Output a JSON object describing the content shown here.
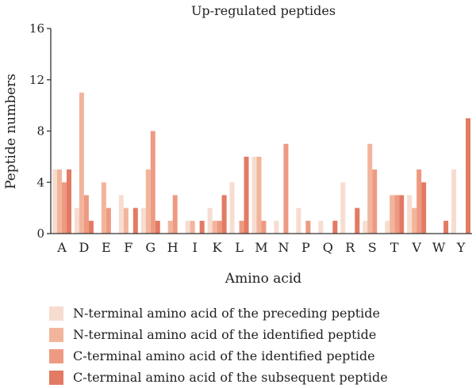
{
  "chart_data": {
    "type": "bar",
    "title": "Up-regulated peptides",
    "xlabel": "Amino acid",
    "ylabel": "Peptide numbers",
    "ylim": [
      0,
      16
    ],
    "yticks": [
      0,
      4,
      8,
      12,
      16
    ],
    "categories": [
      "A",
      "D",
      "E",
      "F",
      "G",
      "H",
      "I",
      "K",
      "L",
      "M",
      "N",
      "P",
      "Q",
      "R",
      "S",
      "T",
      "V",
      "W",
      "Y"
    ],
    "legend_position": "bottom",
    "series": [
      {
        "name": "N-terminal amino acid of the preceding peptide",
        "color": "#f6ddd0",
        "values": [
          5,
          2,
          0,
          3,
          2,
          0,
          1,
          2,
          4,
          6,
          1,
          2,
          1,
          4,
          1,
          1,
          3,
          0,
          5
        ]
      },
      {
        "name": "N-terminal amino acid of the identified peptide",
        "color": "#f2b59c",
        "values": [
          5,
          11,
          4,
          2,
          5,
          1,
          1,
          1,
          0,
          6,
          0,
          0,
          0,
          0,
          7,
          3,
          2,
          0,
          0
        ]
      },
      {
        "name": "C-terminal amino acid of the identified peptide",
        "color": "#ee9a82",
        "values": [
          4,
          3,
          2,
          0,
          8,
          3,
          0,
          1,
          1,
          1,
          7,
          1,
          0,
          0,
          5,
          3,
          5,
          0,
          0
        ]
      },
      {
        "name": "C-terminal amino acid of the subsequent peptide",
        "color": "#e37a63",
        "values": [
          5,
          1,
          0,
          2,
          1,
          0,
          1,
          3,
          6,
          0,
          0,
          0,
          1,
          2,
          0,
          3,
          4,
          1,
          9
        ]
      }
    ]
  }
}
